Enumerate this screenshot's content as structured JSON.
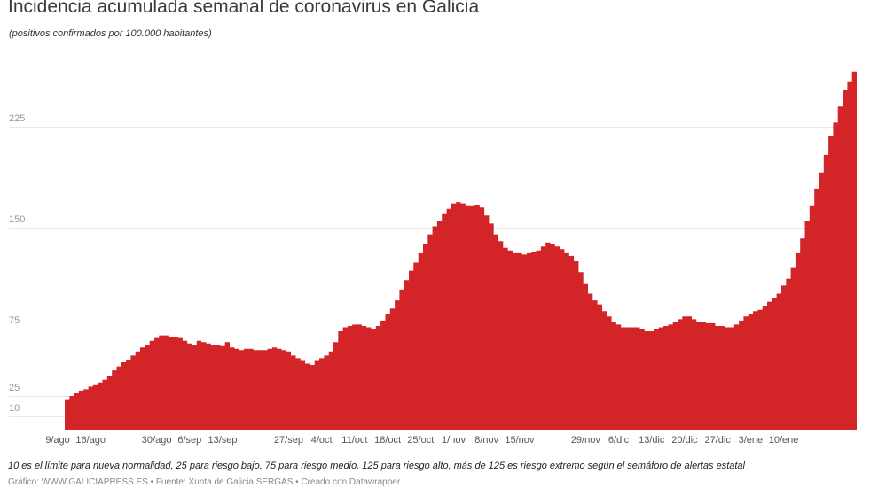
{
  "header": {
    "title": "Incidencia acumulada semanal de coronavirus en Galicia",
    "subtitle": "(positivos confirmados por 100.000 habitantes)"
  },
  "footer": {
    "note": "10 es el límite para nueva normalidad, 25 para riesgo bajo, 75 para riesgo medio, 125 para riesgo alto, más de 125 es riesgo extremo según el semáforo de alertas estatal",
    "credit": "Gráfico: WWW.GALICIAPRESS.ES • Fuente: Xunta de Galicia SERGAS • Creado con Datawrapper"
  },
  "colors": {
    "fill": "#d32528",
    "grid": "#e8e8e8",
    "axis": "#555555"
  },
  "chart_data": {
    "type": "area",
    "title": "Incidencia acumulada semanal de coronavirus en Galicia",
    "subtitle": "(positivos confirmados por 100.000 habitantes)",
    "xlabel": "",
    "ylabel": "",
    "ylim": [
      0,
      266
    ],
    "grid": true,
    "y_ticks": [
      10,
      25,
      75,
      150,
      225
    ],
    "x_ticks": [
      "9/ago",
      "16/ago",
      "30/ago",
      "6/sep",
      "13/sep",
      "27/sep",
      "4/oct",
      "11/oct",
      "18/oct",
      "25/oct",
      "1/nov",
      "8/nov",
      "15/nov",
      "29/nov",
      "6/dic",
      "13/dic",
      "20/dic",
      "27/dic",
      "3/ene",
      "10/ene"
    ],
    "x_tick_day_index": [
      0,
      7,
      21,
      28,
      35,
      49,
      56,
      63,
      70,
      77,
      84,
      91,
      98,
      112,
      119,
      126,
      133,
      140,
      147,
      154
    ],
    "series": [
      {
        "name": "Incidencia acumulada semanal",
        "start_date": "9/ago",
        "values": [
          22,
          25,
          27,
          29,
          30,
          32,
          33,
          35,
          37,
          40,
          44,
          47,
          50,
          52,
          55,
          58,
          61,
          63,
          66,
          68,
          70,
          70,
          69,
          69,
          68,
          66,
          64,
          63,
          66,
          65,
          64,
          63,
          63,
          62,
          65,
          61,
          60,
          59,
          60,
          60,
          59,
          59,
          59,
          60,
          61,
          60,
          59,
          58,
          55,
          53,
          51,
          49,
          48,
          51,
          53,
          55,
          58,
          65,
          73,
          76,
          77,
          78,
          78,
          77,
          76,
          75,
          77,
          81,
          86,
          90,
          96,
          104,
          111,
          118,
          124,
          131,
          138,
          145,
          151,
          155,
          160,
          164,
          168,
          169,
          168,
          166,
          166,
          167,
          165,
          159,
          153,
          145,
          140,
          135,
          133,
          131,
          131,
          130,
          131,
          132,
          133,
          136,
          139,
          138,
          136,
          134,
          131,
          129,
          125,
          117,
          108,
          101,
          96,
          93,
          88,
          84,
          80,
          78,
          76,
          76,
          76,
          76,
          75,
          73,
          73,
          75,
          76,
          77,
          78,
          80,
          82,
          84,
          84,
          82,
          80,
          80,
          79,
          79,
          77,
          77,
          76,
          76,
          78,
          81,
          84,
          86,
          88,
          89,
          92,
          95,
          98,
          101,
          107,
          112,
          120,
          131,
          142,
          155,
          166,
          179,
          191,
          204,
          218,
          228,
          240,
          252,
          258,
          266
        ]
      }
    ]
  }
}
